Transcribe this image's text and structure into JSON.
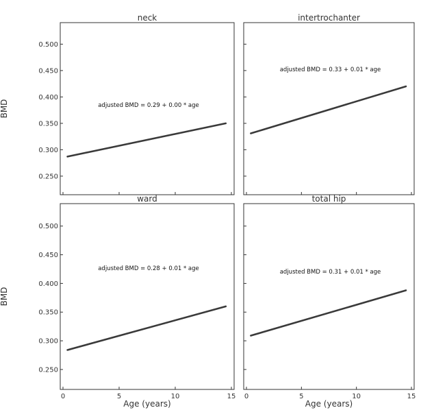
{
  "chart_data": [
    {
      "type": "line",
      "title": "neck",
      "ylabel": "BMD",
      "xlabel": "",
      "xlim": [
        0,
        15
      ],
      "ylim": [
        0.22,
        0.52
      ],
      "xticks": [
        "0",
        "5",
        "10",
        "15"
      ],
      "yticks": [
        "0.500",
        "0.450",
        "0.400",
        "0.350",
        "0.300",
        "0.250"
      ],
      "annotation": "adjusted BMD  = 0.29 + 0.00 * age",
      "series": [
        {
          "x": [
            0.4,
            14.5
          ],
          "y": [
            0.287,
            0.35
          ]
        }
      ]
    },
    {
      "type": "line",
      "title": "intertrochanter",
      "ylabel": "",
      "xlabel": "",
      "xlim": [
        0,
        15
      ],
      "ylim": [
        0.22,
        0.52
      ],
      "xticks": [
        "0",
        "5",
        "10",
        "15"
      ],
      "yticks": [
        "",
        "",
        "",
        "",
        "",
        ""
      ],
      "annotation": "adjusted BMD  = 0.33 + 0.01 * age",
      "series": [
        {
          "x": [
            0.4,
            14.5
          ],
          "y": [
            0.331,
            0.42
          ]
        }
      ]
    },
    {
      "type": "line",
      "title": "ward",
      "ylabel": "BMD",
      "xlabel": "Age (years)",
      "xlim": [
        0,
        15
      ],
      "ylim": [
        0.22,
        0.52
      ],
      "xticks": [
        "0",
        "5",
        "10",
        "15"
      ],
      "yticks": [
        "0.500",
        "0.450",
        "0.400",
        "0.350",
        "0.300",
        "0.250"
      ],
      "annotation": "adjusted BMD  = 0.28 + 0.01 * age",
      "series": [
        {
          "x": [
            0.4,
            14.5
          ],
          "y": [
            0.284,
            0.36
          ]
        }
      ]
    },
    {
      "type": "line",
      "title": "total hip",
      "ylabel": "",
      "xlabel": "Age (years)",
      "xlim": [
        0,
        15
      ],
      "ylim": [
        0.22,
        0.52
      ],
      "xticks": [
        "0",
        "5",
        "10",
        "15"
      ],
      "yticks": [
        "",
        "",
        "",
        "",
        "",
        ""
      ],
      "annotation": "adjusted BMD  = 0.31 + 0.01 * age",
      "series": [
        {
          "x": [
            0.4,
            14.5
          ],
          "y": [
            0.309,
            0.388
          ]
        }
      ]
    }
  ],
  "colors": {
    "line": "#3a3a3a",
    "frame": "#333333",
    "text": "#333333"
  }
}
